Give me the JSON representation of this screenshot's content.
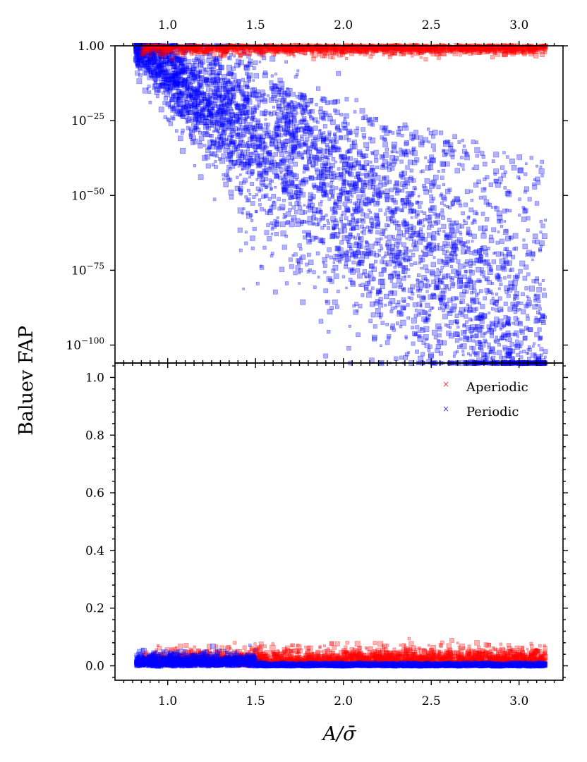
{
  "chart_data": [
    {
      "panel": "top",
      "type": "scatter",
      "yscale": "log",
      "xlim": [
        0.7,
        3.25
      ],
      "ylim_log10": [
        -106,
        0
      ],
      "x_top_ticks": [
        "1.0",
        "1.5",
        "2.0",
        "2.5",
        "3.0"
      ],
      "y_ticks": [
        {
          "value_log10": 0,
          "label": "1.00"
        },
        {
          "value_log10": -25,
          "label_base": "10",
          "label_exp": "−25"
        },
        {
          "value_log10": -50,
          "label_base": "10",
          "label_exp": "−50"
        },
        {
          "value_log10": -75,
          "label_base": "10",
          "label_exp": "−75"
        },
        {
          "value_log10": -100,
          "label_base": "10",
          "label_exp": "−100"
        }
      ],
      "series": [
        {
          "name": "Aperiodic",
          "color": "#ff0000",
          "x_range": [
            0.85,
            3.15
          ],
          "log10_fap_range": [
            -4,
            0
          ],
          "approx_points": 1600
        },
        {
          "name": "Periodic",
          "color": "#0000ff",
          "x_range": [
            0.82,
            3.15
          ],
          "log10_fap_trend": "0 at x≈0.85 decreasing to about -106 at x≈3.1, wide scatter",
          "approx_points": 5000
        }
      ]
    },
    {
      "panel": "bottom",
      "type": "scatter",
      "xlim": [
        0.7,
        3.25
      ],
      "ylim": [
        -0.05,
        1.05
      ],
      "x_ticks": [
        "1.0",
        "1.5",
        "2.0",
        "2.5",
        "3.0"
      ],
      "y_ticks": [
        "0.0",
        "0.2",
        "0.4",
        "0.6",
        "0.8",
        "1.0"
      ],
      "xlabel": "A/σ̄",
      "series": [
        {
          "name": "Aperiodic",
          "color": "#ff0000",
          "x_range": [
            0.85,
            3.15
          ],
          "y_range": [
            0.0,
            0.15
          ]
        },
        {
          "name": "Periodic",
          "color": "#0000ff",
          "x_range": [
            0.82,
            3.15
          ],
          "y_range": [
            0.0,
            0.08
          ]
        }
      ],
      "legend": {
        "position": "top-right",
        "entries": [
          "Aperiodic",
          "Periodic"
        ]
      }
    }
  ],
  "shared_ylabel": "Baluev FAP"
}
